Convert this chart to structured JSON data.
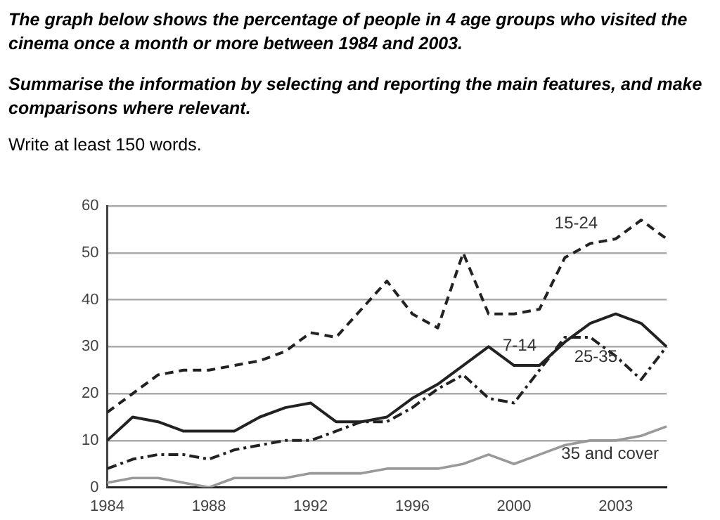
{
  "chart_data": {
    "type": "line",
    "title": "The graph below shows the percentage of people in 4 age groups who visited the cinema once a month or more between 1984 and 2003.",
    "subtitle": "Summarise the information by selecting and reporting the main features, and make comparisons where relevant.",
    "annotations": [
      "Write at least 150 words."
    ],
    "categories": [
      "1984",
      null,
      null,
      null,
      "1988",
      null,
      null,
      null,
      "1992",
      null,
      null,
      null,
      "1996",
      null,
      null,
      null,
      "2000",
      null,
      null,
      null,
      "2003",
      null,
      null
    ],
    "series": [
      {
        "name": "15-24",
        "color": "#222222",
        "line_style": "dashed",
        "values": [
          16,
          20,
          24,
          25,
          25,
          26,
          27,
          29,
          33,
          32,
          38,
          44,
          37,
          34,
          50,
          37,
          37,
          38,
          49,
          52,
          53,
          57,
          53
        ]
      },
      {
        "name": "7-14",
        "color": "#222222",
        "line_style": "solid",
        "values": [
          10,
          15,
          14,
          12,
          12,
          12,
          15,
          17,
          18,
          14,
          14,
          15,
          19,
          22,
          26,
          30,
          26,
          26,
          31,
          35,
          37,
          35,
          30
        ]
      },
      {
        "name": "25-35",
        "color": "#222222",
        "line_style": "dotted",
        "values": [
          4,
          6,
          7,
          7,
          6,
          8,
          9,
          10,
          10,
          12,
          14,
          14,
          17,
          21,
          24,
          19,
          18,
          25,
          32,
          32,
          28,
          23,
          30
        ]
      },
      {
        "name": "35 and cover",
        "color": "#999999",
        "line_style": "solid",
        "values": [
          1,
          2,
          2,
          1,
          0,
          2,
          2,
          2,
          3,
          3,
          3,
          4,
          4,
          4,
          5,
          7,
          5,
          7,
          9,
          10,
          10,
          11,
          13
        ]
      }
    ],
    "ylim": [
      0,
      60
    ],
    "yticks": [
      0,
      10,
      20,
      30,
      40,
      50,
      60
    ],
    "grid": "y",
    "legend": false,
    "marker": "none"
  }
}
